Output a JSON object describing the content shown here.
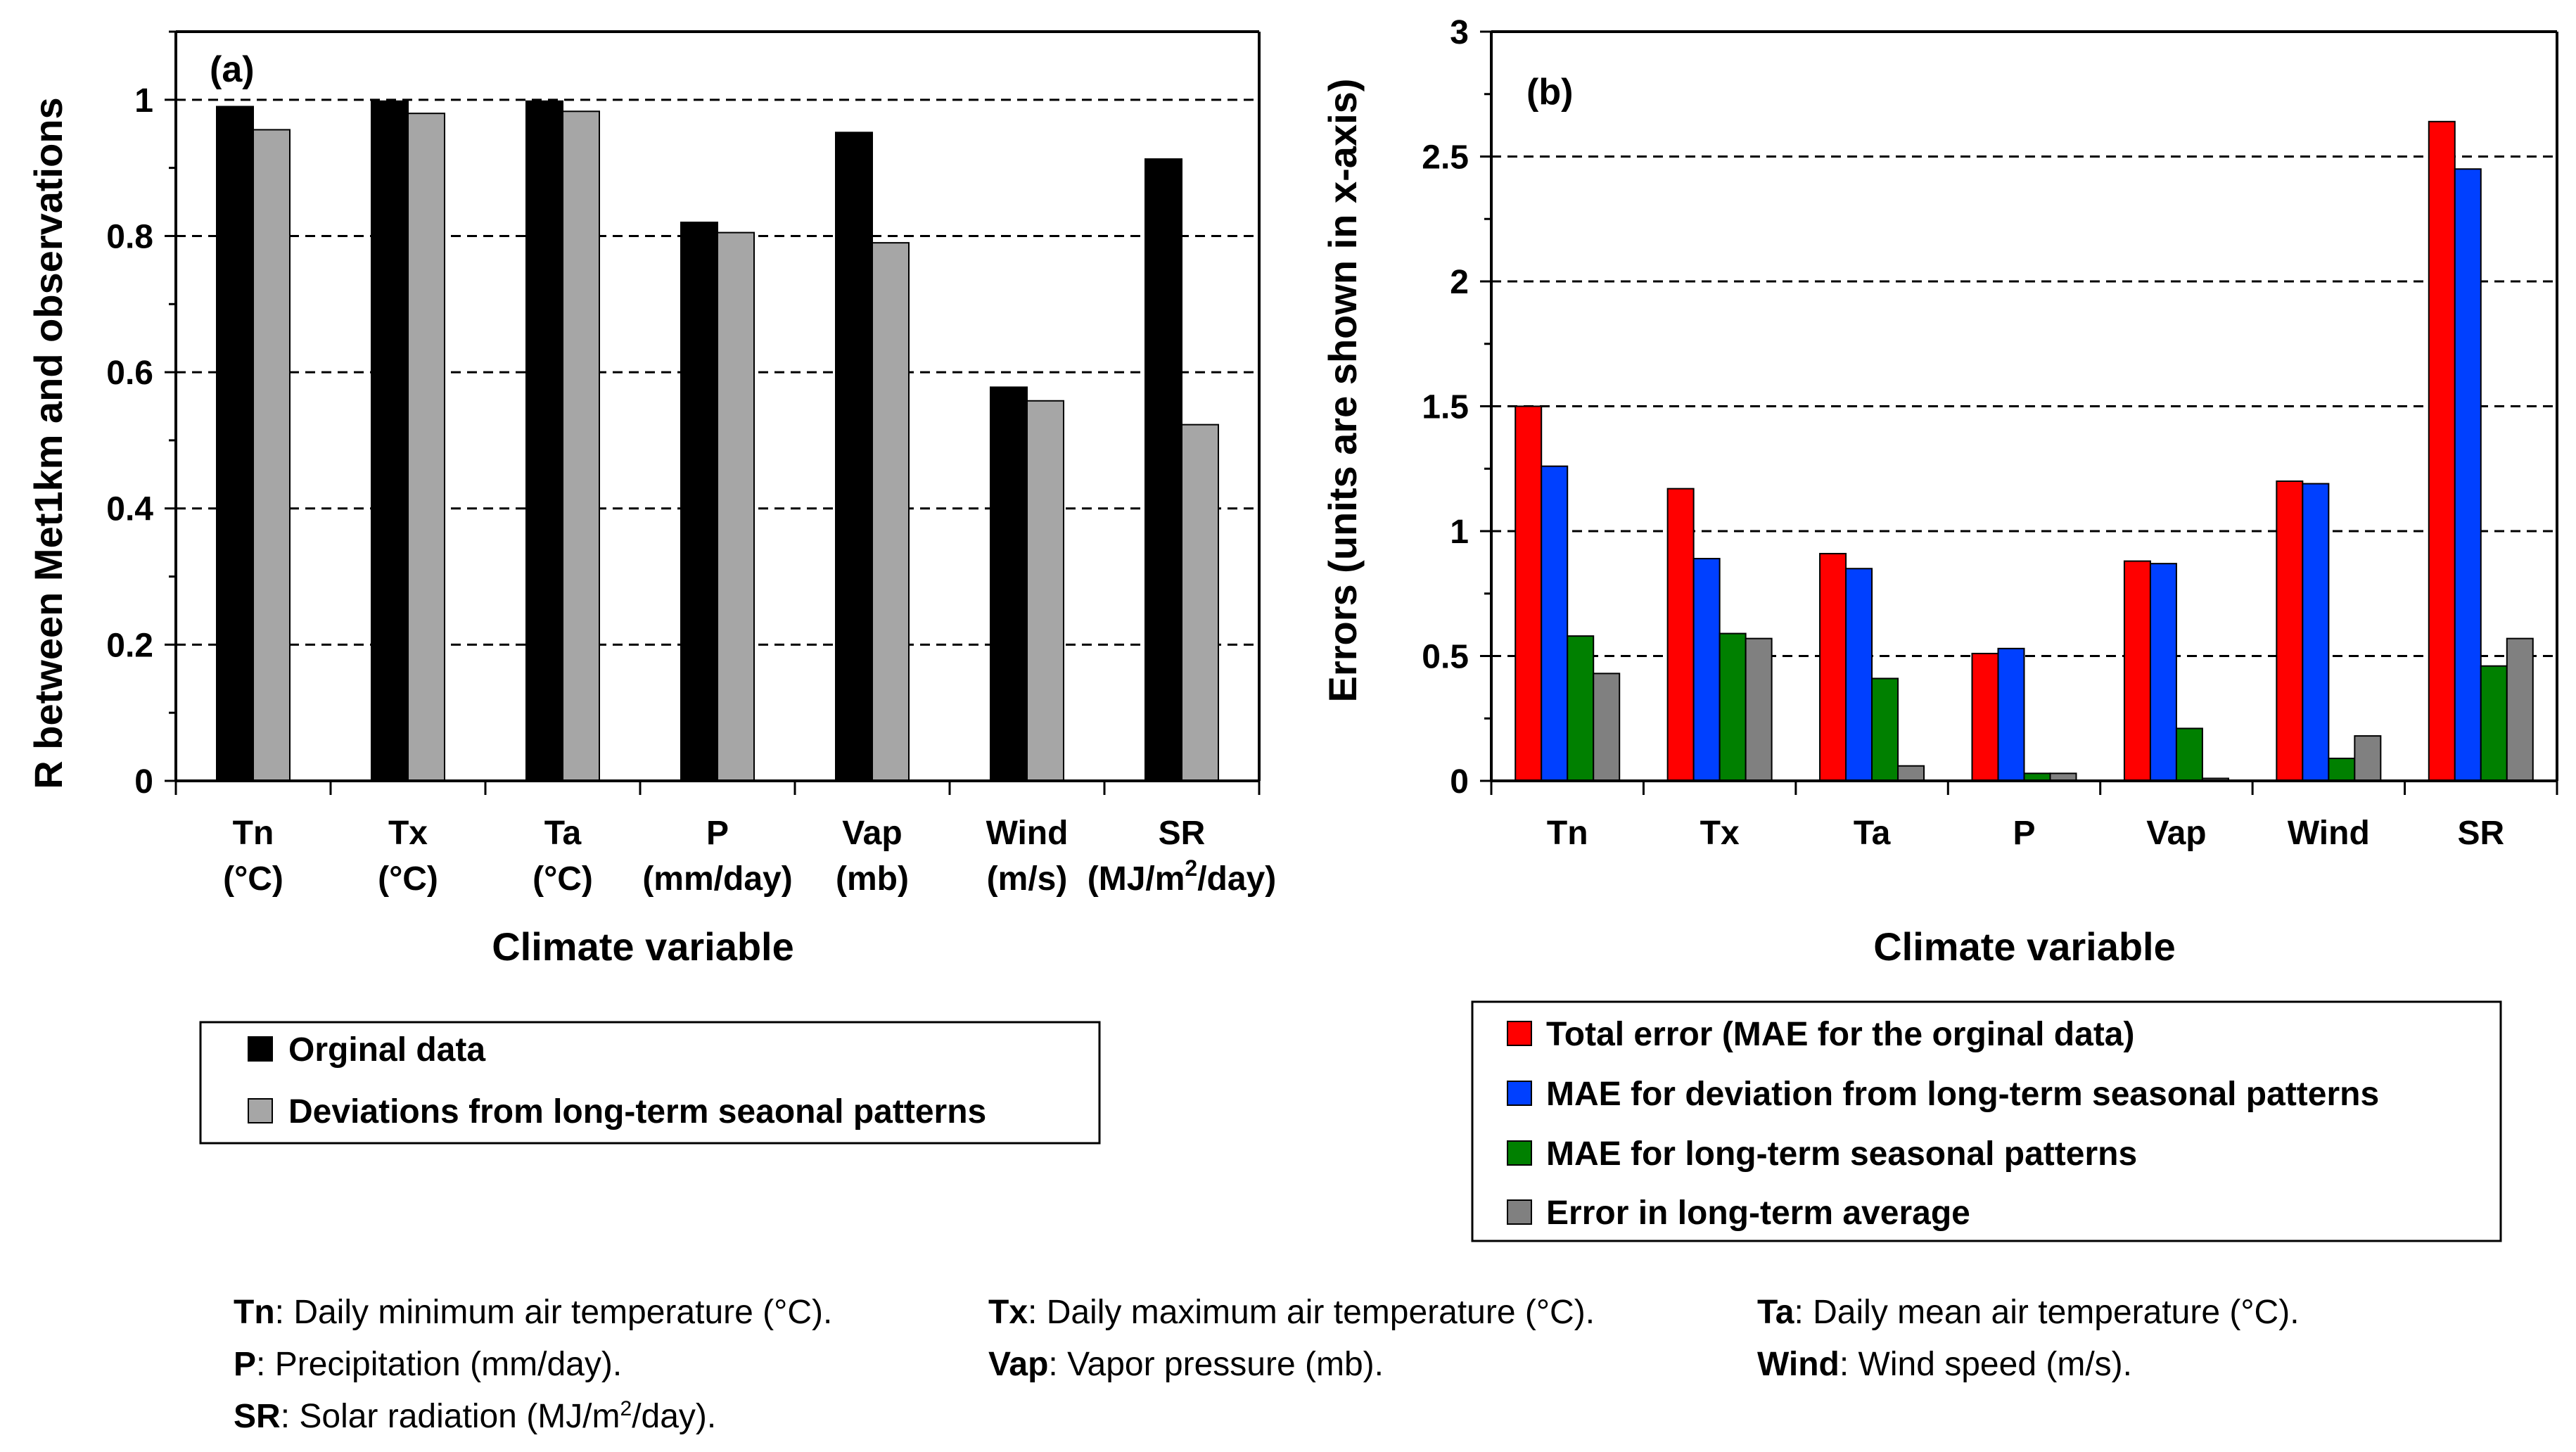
{
  "chart_data": [
    {
      "type": "bar",
      "panel_label": "(a)",
      "ylabel": "R between Met1km and observations",
      "xlabel": "Climate variable",
      "ylim": [
        0,
        1.1
      ],
      "yticks": [
        0,
        0.2,
        0.4,
        0.6,
        0.8,
        1
      ],
      "ytick_labels": [
        "0",
        "0.2",
        "0.4",
        "0.6",
        "0.8",
        "1"
      ],
      "gridlines": [
        0.2,
        0.4,
        0.6,
        0.8,
        1
      ],
      "categories": [
        {
          "name": "Tn",
          "unit": "(°C)"
        },
        {
          "name": "Tx",
          "unit": "(°C)"
        },
        {
          "name": "Ta",
          "unit": "(°C)"
        },
        {
          "name": "P",
          "unit": "(mm/day)"
        },
        {
          "name": "Vap",
          "unit": "(mb)"
        },
        {
          "name": "Wind",
          "unit": "(m/s)"
        },
        {
          "name": "SR",
          "unit": "(MJ/m2/day)",
          "unit_before_sup": "(MJ/m",
          "unit_sup": "2",
          "unit_after_sup": "/day)"
        }
      ],
      "series": [
        {
          "name": "Orginal data",
          "color": "#000000",
          "values": [
            0.99,
            0.998,
            0.998,
            0.82,
            0.952,
            0.578,
            0.913
          ]
        },
        {
          "name": "Deviations from long-term seaonal patterns",
          "color": "#a6a6a6",
          "values": [
            0.956,
            0.98,
            0.983,
            0.805,
            0.79,
            0.558,
            0.523
          ]
        }
      ],
      "legend": {
        "position": "below"
      }
    },
    {
      "type": "bar",
      "panel_label": "(b)",
      "ylabel": "Errors (units are shown in x-axis)",
      "xlabel": "Climate variable",
      "ylim": [
        0,
        3
      ],
      "yticks": [
        0,
        0.5,
        1,
        1.5,
        2,
        2.5,
        3
      ],
      "ytick_labels": [
        "0",
        "0.5",
        "1",
        "1.5",
        "2",
        "2.5",
        "3"
      ],
      "gridlines": [
        0.5,
        1,
        1.5,
        2,
        2.5
      ],
      "categories": [
        "Tn",
        "Tx",
        "Ta",
        "P",
        "Vap",
        "Wind",
        "SR"
      ],
      "series": [
        {
          "name": "Total error (MAE for the orginal data)",
          "color": "#ff0000",
          "values": [
            1.5,
            1.17,
            0.91,
            0.51,
            0.88,
            1.2,
            2.64
          ]
        },
        {
          "name": "MAE for deviation from long-term seasonal patterns",
          "color": "#0040ff",
          "values": [
            1.26,
            0.89,
            0.85,
            0.53,
            0.87,
            1.19,
            2.45
          ]
        },
        {
          "name": "MAE for long-term seasonal patterns",
          "color": "#008000",
          "values": [
            0.58,
            0.59,
            0.41,
            0.03,
            0.21,
            0.09,
            0.46
          ]
        },
        {
          "name": "Error in long-term average",
          "color": "#808080",
          "values": [
            0.43,
            0.57,
            0.06,
            0.03,
            0.01,
            0.18,
            0.57
          ]
        }
      ],
      "legend": {
        "position": "below"
      }
    }
  ],
  "footnotes": [
    {
      "abbr": "Tn",
      "text": ": Daily minimum air temperature  (°C)."
    },
    {
      "abbr": "Tx",
      "text": ": Daily maximum air temperature  (°C)."
    },
    {
      "abbr": "Ta",
      "text": ": Daily mean air temperature  (°C)."
    },
    {
      "abbr": "P",
      "text": ": Precipitation (mm/day)."
    },
    {
      "abbr": "Vap",
      "text": ": Vapor pressure (mb)."
    },
    {
      "abbr": "Wind",
      "text": ": Wind speed (m/s)."
    },
    {
      "abbr": "SR",
      "text": ": Solar radiation (MJ/m2/day).",
      "text_before_sup": ": Solar radiation (MJ/m",
      "text_sup": "2",
      "text_after_sup": "/day)."
    }
  ]
}
